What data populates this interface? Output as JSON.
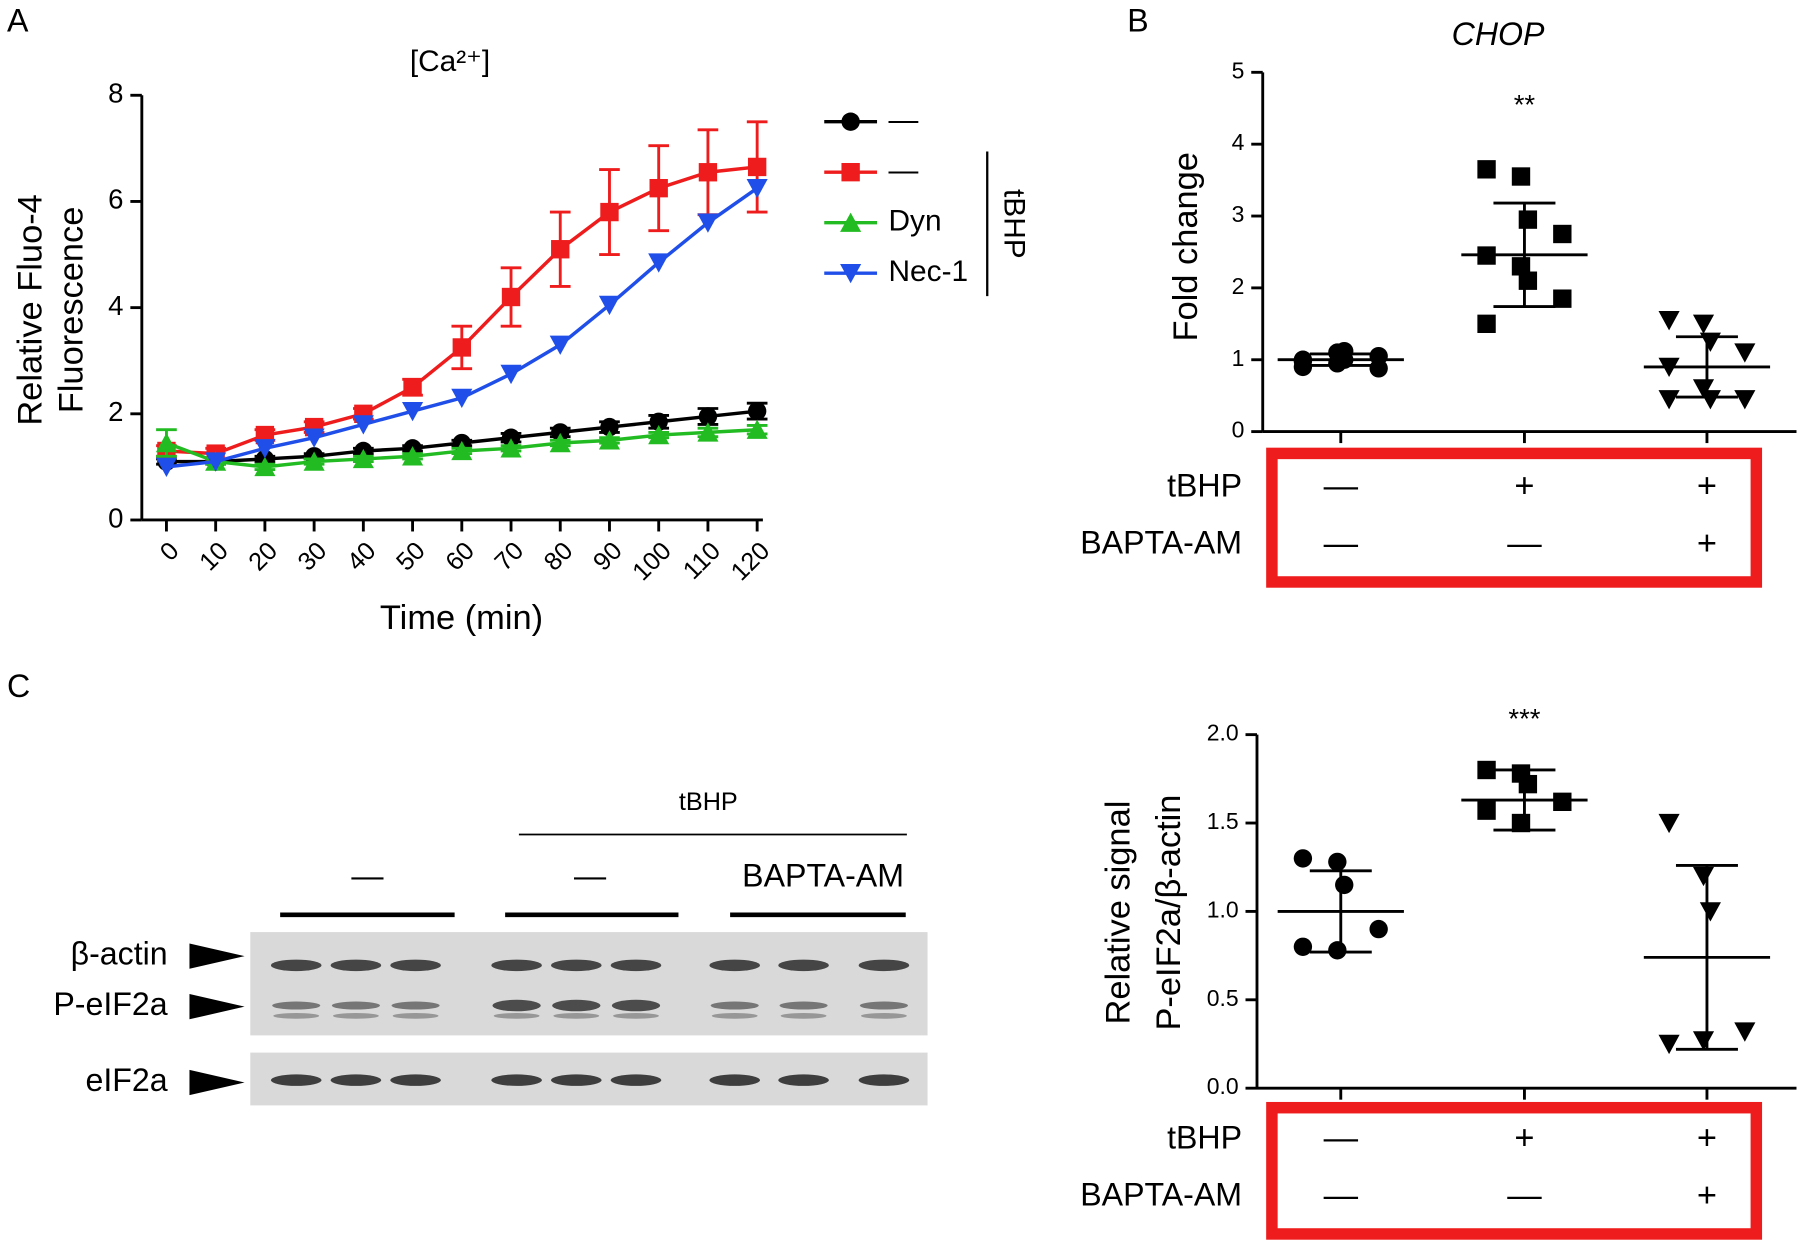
{
  "panel_labels": [
    "A",
    "B",
    "C"
  ],
  "chart_data": [
    {
      "type": "line",
      "title": "[Ca²⁺]",
      "xlabel": "Time (min)",
      "ylabel": [
        "Relative Fluo-4",
        "Fluorescence"
      ],
      "x": [
        0,
        10,
        20,
        30,
        40,
        50,
        60,
        70,
        80,
        90,
        100,
        110,
        120
      ],
      "xlim": [
        -5,
        125
      ],
      "xticks": [
        0,
        10,
        20,
        30,
        40,
        50,
        60,
        70,
        80,
        90,
        100,
        110,
        120
      ],
      "ylim": [
        0,
        8
      ],
      "yticks": [
        0,
        2,
        4,
        6,
        8
      ],
      "legend_position": "right",
      "legend_group_label": "tBHP",
      "series": [
        {
          "name": "—",
          "color": "#000000",
          "marker": "circle",
          "values": [
            1.1,
            1.1,
            1.15,
            1.2,
            1.3,
            1.35,
            1.45,
            1.55,
            1.65,
            1.75,
            1.85,
            1.95,
            2.05
          ],
          "errors": [
            0.05,
            0.05,
            0.05,
            0.05,
            0.05,
            0.05,
            0.05,
            0.08,
            0.08,
            0.1,
            0.12,
            0.15,
            0.15
          ]
        },
        {
          "name": "—",
          "color": "#ee1c1c",
          "marker": "square",
          "values": [
            1.3,
            1.25,
            1.6,
            1.75,
            2.0,
            2.5,
            3.25,
            4.2,
            5.1,
            5.8,
            6.25,
            6.55,
            6.65
          ],
          "errors": [
            0.1,
            0.1,
            0.1,
            0.1,
            0.1,
            0.15,
            0.4,
            0.55,
            0.7,
            0.8,
            0.8,
            0.8,
            0.85
          ]
        },
        {
          "name": "Dyn",
          "color": "#22bb22",
          "marker": "triangle-up",
          "values": [
            1.45,
            1.1,
            1.0,
            1.1,
            1.15,
            1.2,
            1.3,
            1.35,
            1.45,
            1.5,
            1.6,
            1.65,
            1.7
          ],
          "errors": [
            0.25,
            0.05,
            0.05,
            0.05,
            0.05,
            0.05,
            0.05,
            0.05,
            0.05,
            0.05,
            0.05,
            0.08,
            0.08
          ]
        },
        {
          "name": "Nec-1",
          "color": "#1f4fe8",
          "marker": "triangle-down",
          "values": [
            1.0,
            1.1,
            1.35,
            1.55,
            1.8,
            2.05,
            2.3,
            2.75,
            3.3,
            4.05,
            4.85,
            5.6,
            6.25
          ]
        }
      ]
    },
    {
      "type": "dot",
      "title": "CHOP",
      "ylabel": [
        "Fold change"
      ],
      "ylim": [
        0,
        5
      ],
      "yticks": [
        0,
        1,
        2,
        3,
        4,
        5
      ],
      "color": "#000000",
      "groups": [
        {
          "marker": "circle",
          "points": [
            1.0,
            1.1,
            1.12,
            1.05,
            0.98,
            0.95,
            1.0,
            0.88,
            0.9
          ],
          "mean": 1.0,
          "sd": 0.08
        },
        {
          "marker": "square",
          "points": [
            3.65,
            3.55,
            2.95,
            2.75,
            2.45,
            2.3,
            2.1,
            1.85,
            1.5
          ],
          "mean": 2.46,
          "sd": 0.72,
          "annotation": "**"
        },
        {
          "marker": "triangle-down",
          "points": [
            1.55,
            1.5,
            1.25,
            1.1,
            0.9,
            0.6,
            0.45,
            0.45,
            0.45
          ],
          "mean": 0.9,
          "sd": 0.42
        }
      ],
      "conditions": {
        "labels": [
          "tBHP",
          "BAPTA-AM"
        ],
        "rows": [
          [
            "—",
            "+",
            "+"
          ],
          [
            "—",
            "—",
            "+"
          ]
        ],
        "box_color": "#ee1c1c"
      }
    },
    {
      "type": "dot",
      "ylabel": [
        "Relative signal",
        "P-eIF2a/β-actin"
      ],
      "ylim": [
        0,
        2
      ],
      "yticks": [
        {
          "value": 0,
          "label": "0.0"
        },
        {
          "value": 0.5,
          "label": "0.5"
        },
        {
          "value": 1,
          "label": "1.0"
        },
        {
          "value": 1.5,
          "label": "1.5"
        },
        {
          "value": 2,
          "label": "2.0"
        }
      ],
      "color": "#000000",
      "groups": [
        {
          "marker": "circle",
          "points": [
            1.3,
            1.28,
            1.15,
            0.9,
            0.8,
            0.78
          ],
          "mean": 1.0,
          "sd": 0.23
        },
        {
          "marker": "square",
          "points": [
            1.8,
            1.78,
            1.72,
            1.62,
            1.57,
            1.5
          ],
          "mean": 1.63,
          "sd": 0.17,
          "annotation": "***"
        },
        {
          "marker": "triangle-down",
          "points": [
            1.5,
            1.2,
            1.0,
            0.32,
            0.25,
            0.27
          ],
          "mean": 0.74,
          "sd": 0.52
        }
      ],
      "conditions": {
        "labels": [
          "tBHP",
          "BAPTA-AM"
        ],
        "rows": [
          [
            "—",
            "+",
            "+"
          ],
          [
            "—",
            "—",
            "+"
          ]
        ],
        "box_color": "#ee1c1c"
      }
    }
  ],
  "blot": {
    "treatment_label": "tBHP",
    "group_labels": [
      "—",
      "—",
      "BAPTA-AM"
    ],
    "row_labels": [
      "β-actin",
      "P-eIF2a",
      "eIF2a"
    ]
  }
}
